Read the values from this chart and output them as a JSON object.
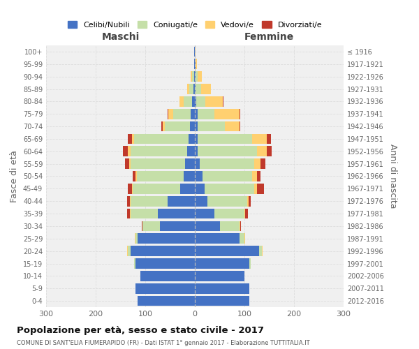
{
  "age_groups": [
    "0-4",
    "5-9",
    "10-14",
    "15-19",
    "20-24",
    "25-29",
    "30-34",
    "35-39",
    "40-44",
    "45-49",
    "50-54",
    "55-59",
    "60-64",
    "65-69",
    "70-74",
    "75-79",
    "80-84",
    "85-89",
    "90-94",
    "95-99",
    "100+"
  ],
  "birth_years": [
    "2012-2016",
    "2007-2011",
    "2002-2006",
    "1997-2001",
    "1992-1996",
    "1987-1991",
    "1982-1986",
    "1977-1981",
    "1972-1976",
    "1967-1971",
    "1962-1966",
    "1957-1961",
    "1952-1956",
    "1947-1951",
    "1942-1946",
    "1937-1941",
    "1932-1936",
    "1927-1931",
    "1922-1926",
    "1917-1921",
    "≤ 1916"
  ],
  "maschi": {
    "celibi": [
      115,
      120,
      110,
      120,
      130,
      115,
      70,
      75,
      55,
      30,
      22,
      20,
      15,
      12,
      10,
      8,
      5,
      3,
      2,
      1,
      1
    ],
    "coniugati": [
      0,
      0,
      0,
      2,
      5,
      5,
      35,
      55,
      75,
      95,
      95,
      110,
      115,
      110,
      50,
      35,
      18,
      8,
      4,
      1,
      0
    ],
    "vedovi": [
      0,
      0,
      0,
      0,
      1,
      1,
      0,
      1,
      1,
      2,
      3,
      3,
      5,
      5,
      5,
      10,
      8,
      5,
      2,
      0,
      0
    ],
    "divorziati": [
      0,
      0,
      0,
      0,
      0,
      0,
      2,
      5,
      5,
      8,
      5,
      8,
      10,
      8,
      2,
      2,
      0,
      0,
      0,
      0,
      0
    ]
  },
  "femmine": {
    "nubili": [
      110,
      110,
      100,
      110,
      130,
      90,
      50,
      40,
      25,
      20,
      15,
      10,
      5,
      5,
      5,
      5,
      3,
      2,
      1,
      1,
      0
    ],
    "coniugate": [
      0,
      0,
      0,
      2,
      5,
      10,
      40,
      60,
      80,
      100,
      100,
      110,
      120,
      110,
      55,
      35,
      18,
      10,
      5,
      1,
      0
    ],
    "vedove": [
      0,
      0,
      0,
      0,
      1,
      1,
      1,
      2,
      3,
      5,
      10,
      12,
      20,
      30,
      30,
      50,
      35,
      20,
      8,
      2,
      1
    ],
    "divorziate": [
      0,
      0,
      0,
      0,
      0,
      1,
      2,
      5,
      5,
      15,
      8,
      10,
      10,
      8,
      2,
      2,
      2,
      0,
      0,
      0,
      0
    ]
  },
  "colors": {
    "celibi": "#4472C4",
    "coniugati": "#C5DFA8",
    "vedovi": "#FFD070",
    "divorziati": "#C0392B"
  },
  "title": "Popolazione per età, sesso e stato civile - 2017",
  "subtitle": "COMUNE DI SANT'ELIA FIUMERAPIDO (FR) - Dati ISTAT 1° gennaio 2017 - Elaborazione TUTTITALIA.IT",
  "xlabel_maschi": "Maschi",
  "xlabel_femmine": "Femmine",
  "ylabel": "Fasce di età",
  "ylabel_right": "Anni di nascita",
  "xlim": 300,
  "legend_labels": [
    "Celibi/Nubili",
    "Coniugati/e",
    "Vedovi/e",
    "Divorziati/e"
  ],
  "bg_color": "#FFFFFF",
  "grid_color": "#CCCCCC"
}
